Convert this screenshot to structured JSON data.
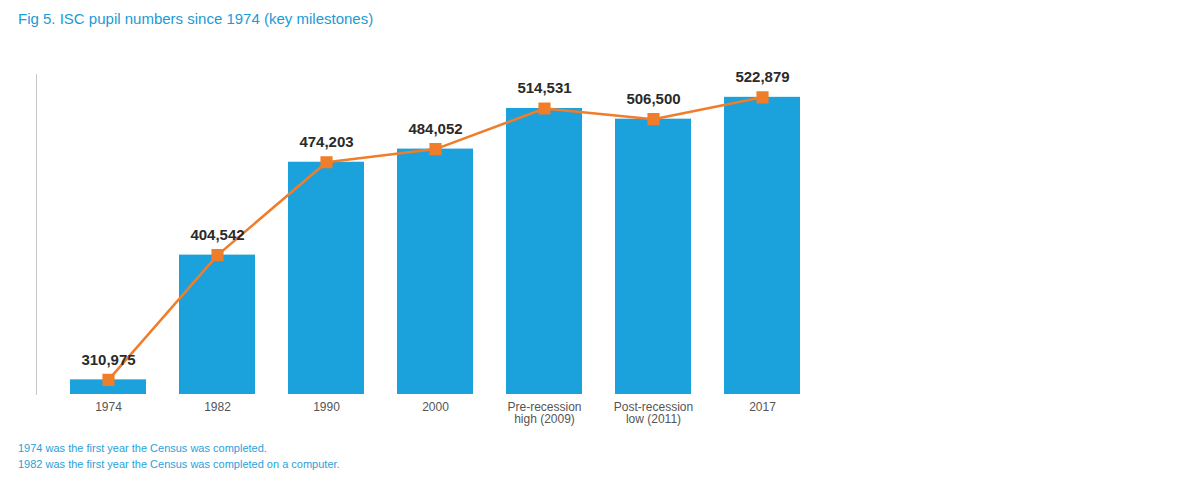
{
  "chart_data": {
    "type": "bar",
    "title": "Fig 5. ISC pupil numbers since 1974 (key milestones)",
    "categories": [
      "1974",
      "1982",
      "1990",
      "2000",
      "Pre-recession high (2009)",
      "Post-recession low (2011)",
      "2017"
    ],
    "series": [
      {
        "type": "bar",
        "color": "#1ba1dc",
        "values": [
          310975,
          404542,
          474203,
          484052,
          514531,
          506500,
          522879
        ],
        "value_labels": [
          "310,975",
          "404,542",
          "474,203",
          "484,052",
          "514,531",
          "506,500",
          "522,879"
        ]
      },
      {
        "type": "line",
        "color": "#f07d2a",
        "marker": "square",
        "line_style": "solid",
        "values": [
          310975,
          404542,
          474203,
          484052,
          514531,
          506500,
          522879
        ]
      }
    ],
    "ylim": [
      300000,
      540000
    ],
    "yticks": [],
    "tick_labels": "x",
    "grid": false,
    "data_labels": true,
    "annotations": [
      "1974 was the first year the Census was completed.",
      "1982 was the first year the Census was completed on a computer."
    ]
  }
}
